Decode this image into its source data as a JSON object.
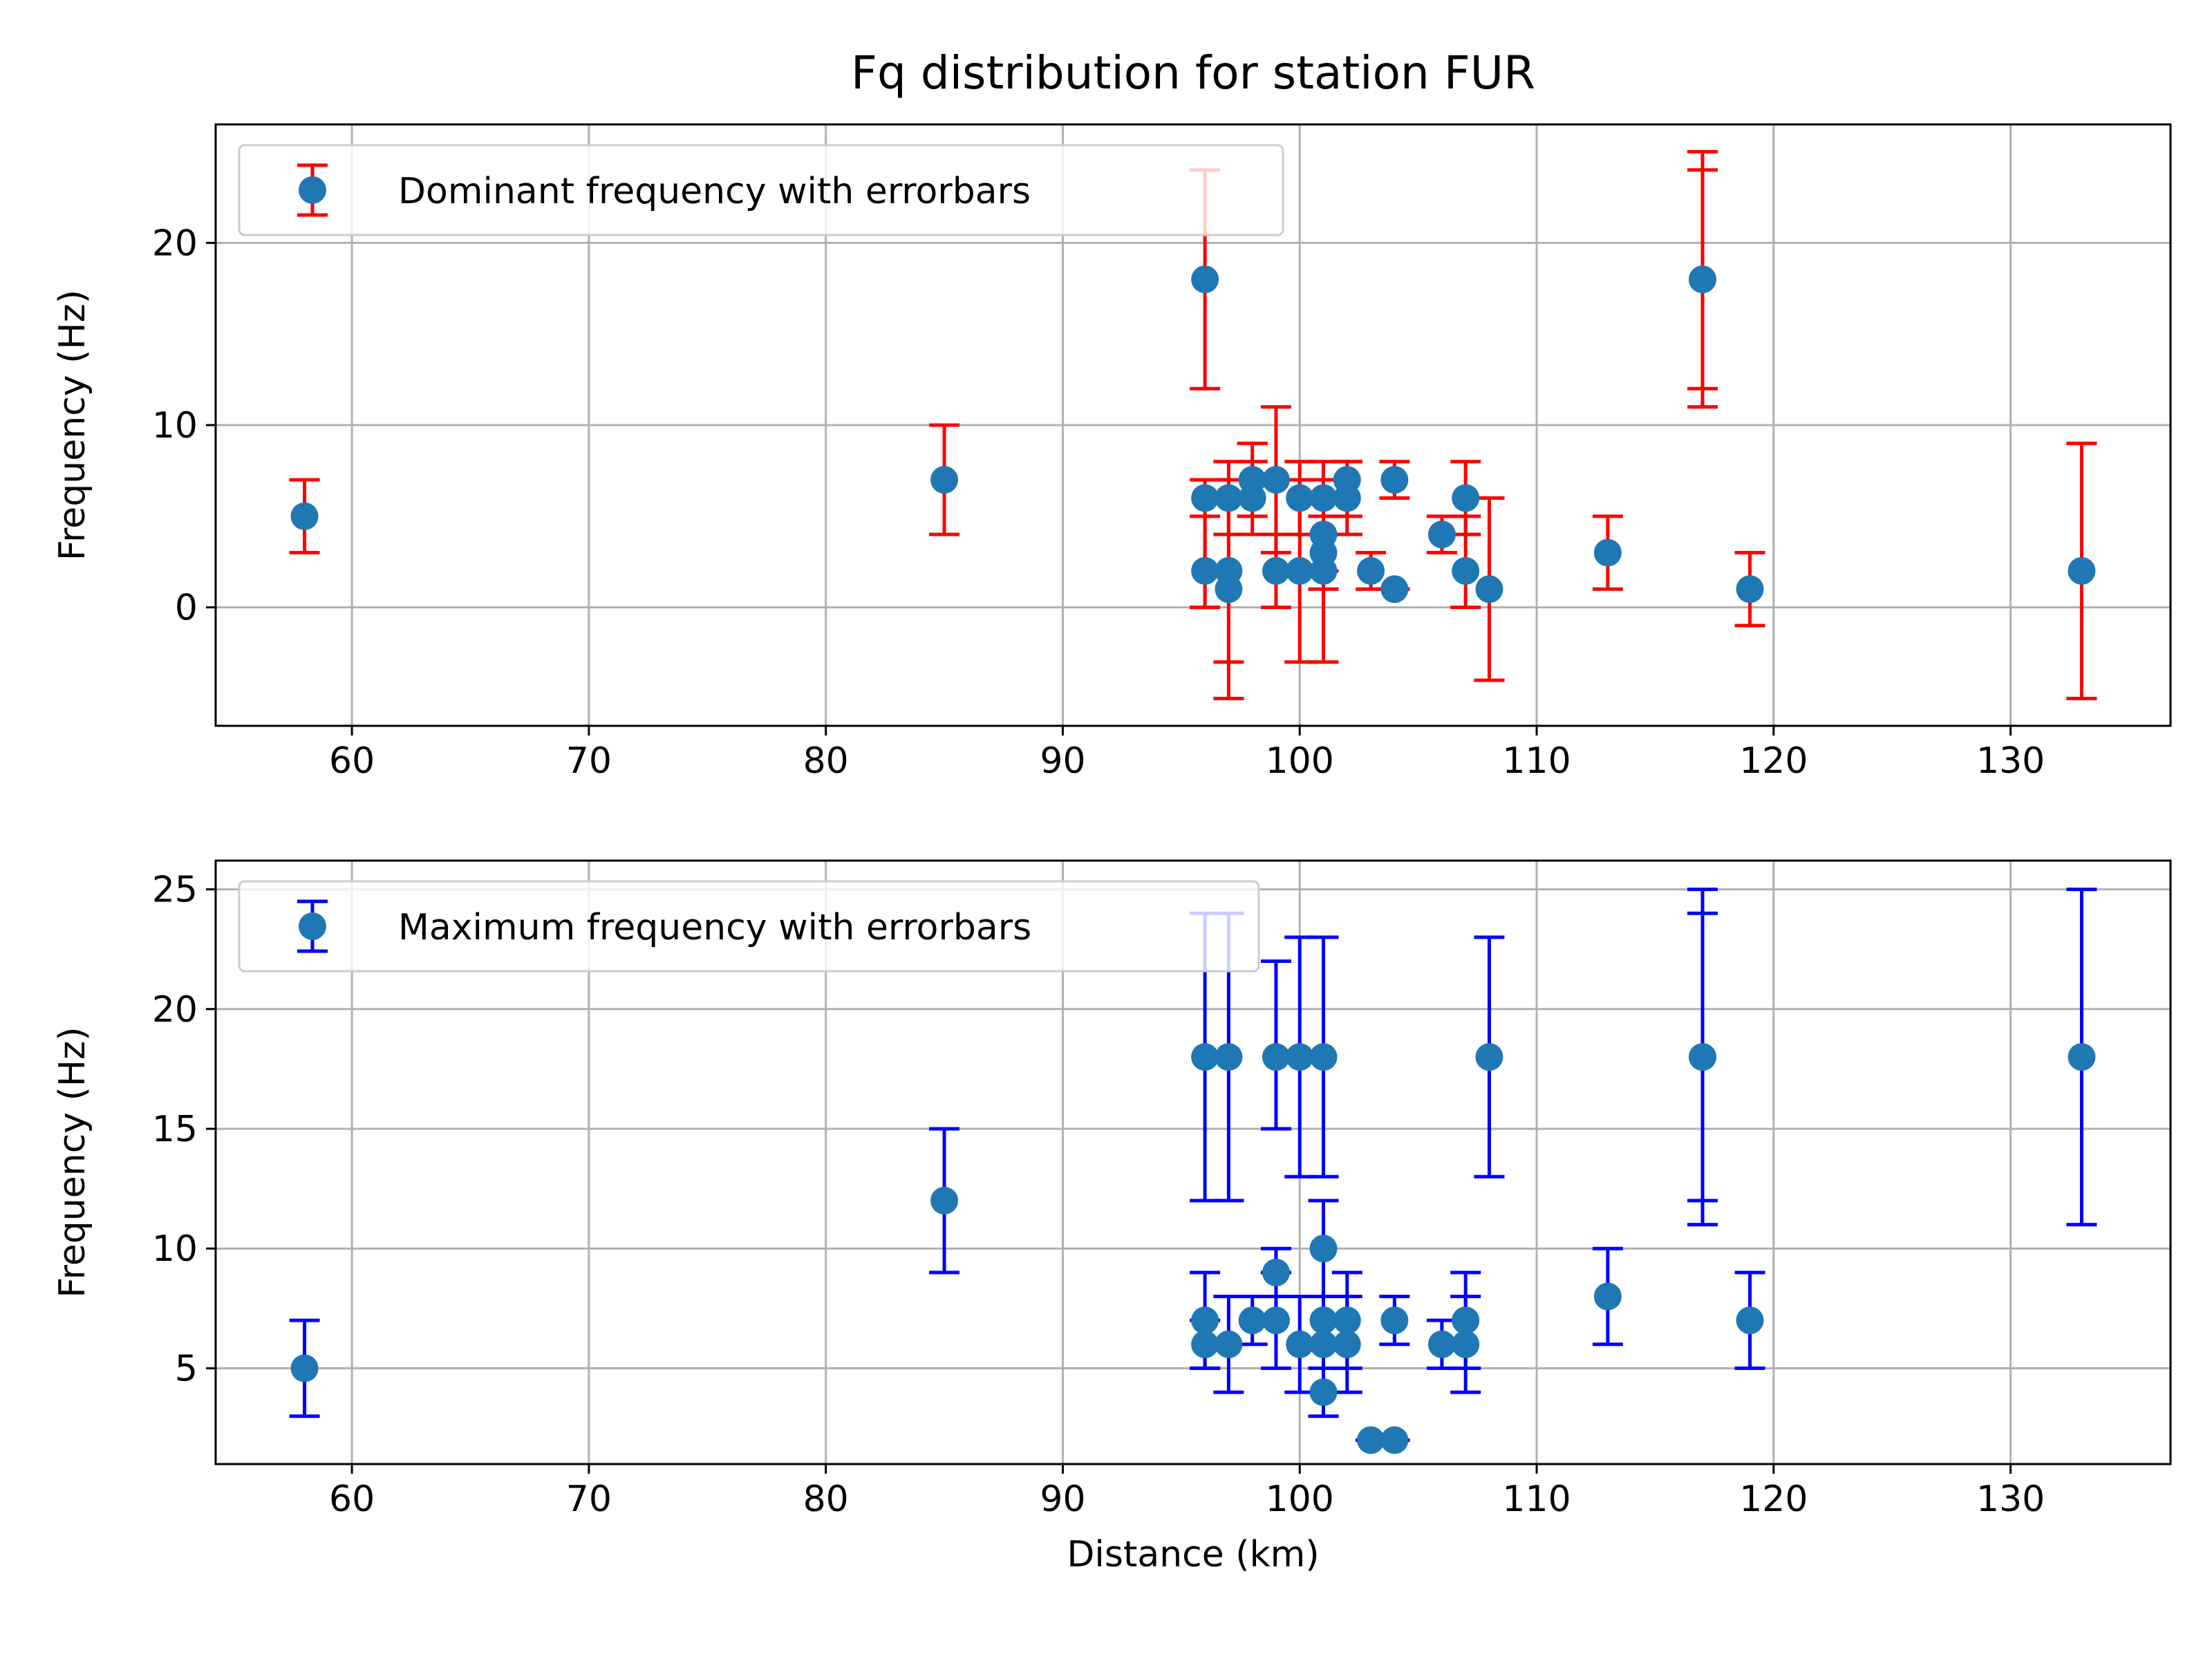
{
  "title": "Fq distribution for station FUR",
  "chart_data": [
    {
      "type": "scatter",
      "title": "Fq distribution for station FUR",
      "xlabel": "",
      "ylabel": "Frequency (Hz)",
      "xlim": [
        54.25,
        136.75
      ],
      "ylim": [
        -6.5,
        26.5
      ],
      "xticks": [
        60,
        70,
        80,
        90,
        100,
        110,
        120,
        130
      ],
      "yticks": [
        0,
        10,
        20
      ],
      "grid": true,
      "legend": {
        "position": "top-left",
        "label": "Dominant frequency with errorbars"
      },
      "colors": {
        "marker": "#1f77b4",
        "errorbar": "#ff0000"
      },
      "points": [
        {
          "x": 58,
          "y": 5,
          "ylow": 3,
          "yhigh": 7
        },
        {
          "x": 85,
          "y": 7,
          "ylow": 4,
          "yhigh": 10
        },
        {
          "x": 96,
          "y": 18,
          "ylow": 12,
          "yhigh": 24
        },
        {
          "x": 96,
          "y": 6,
          "ylow": 0,
          "yhigh": 7
        },
        {
          "x": 96,
          "y": 2,
          "ylow": 0,
          "yhigh": 5
        },
        {
          "x": 97,
          "y": 6,
          "ylow": 4,
          "yhigh": 8
        },
        {
          "x": 97,
          "y": 2,
          "ylow": -3,
          "yhigh": 7
        },
        {
          "x": 97,
          "y": 1,
          "ylow": -5,
          "yhigh": 6
        },
        {
          "x": 98,
          "y": 7,
          "ylow": 5,
          "yhigh": 9
        },
        {
          "x": 98,
          "y": 6,
          "ylow": 4,
          "yhigh": 8
        },
        {
          "x": 99,
          "y": 7,
          "ylow": 3,
          "yhigh": 11
        },
        {
          "x": 99,
          "y": 2,
          "ylow": 0,
          "yhigh": 4
        },
        {
          "x": 100,
          "y": 6,
          "ylow": 4,
          "yhigh": 8
        },
        {
          "x": 100,
          "y": 2,
          "ylow": -3,
          "yhigh": 7
        },
        {
          "x": 101,
          "y": 6,
          "ylow": 4,
          "yhigh": 8
        },
        {
          "x": 101,
          "y": 4,
          "ylow": 2,
          "yhigh": 6
        },
        {
          "x": 101,
          "y": 3,
          "ylow": 1,
          "yhigh": 5
        },
        {
          "x": 101,
          "y": 2,
          "ylow": -3,
          "yhigh": 7
        },
        {
          "x": 102,
          "y": 7,
          "ylow": 5,
          "yhigh": 8
        },
        {
          "x": 102,
          "y": 6,
          "ylow": 4,
          "yhigh": 8
        },
        {
          "x": 103,
          "y": 2,
          "ylow": 1,
          "yhigh": 3
        },
        {
          "x": 104,
          "y": 7,
          "ylow": 6,
          "yhigh": 8
        },
        {
          "x": 104,
          "y": 1,
          "ylow": 1,
          "yhigh": 1
        },
        {
          "x": 106,
          "y": 4,
          "ylow": 3,
          "yhigh": 5
        },
        {
          "x": 107,
          "y": 6,
          "ylow": 4,
          "yhigh": 8
        },
        {
          "x": 107,
          "y": 2,
          "ylow": 0,
          "yhigh": 5
        },
        {
          "x": 108,
          "y": 1,
          "ylow": -4,
          "yhigh": 6
        },
        {
          "x": 113,
          "y": 3,
          "ylow": 1,
          "yhigh": 5
        },
        {
          "x": 117,
          "y": 18,
          "ylow": 11,
          "yhigh": 25
        },
        {
          "x": 117,
          "y": 18,
          "ylow": 12,
          "yhigh": 24
        },
        {
          "x": 119,
          "y": 1,
          "ylow": -1,
          "yhigh": 3
        },
        {
          "x": 133,
          "y": 2,
          "ylow": -5,
          "yhigh": 9
        }
      ]
    },
    {
      "type": "scatter",
      "title": "",
      "xlabel": "Distance (km)",
      "ylabel": "Frequency (Hz)",
      "xlim": [
        54.25,
        136.75
      ],
      "ylim": [
        1.0,
        26.2
      ],
      "xticks": [
        60,
        70,
        80,
        90,
        100,
        110,
        120,
        130
      ],
      "yticks": [
        5,
        10,
        15,
        20,
        25
      ],
      "grid": true,
      "legend": {
        "position": "top-left",
        "label": "Maximum frequency with errorbars"
      },
      "colors": {
        "marker": "#1f77b4",
        "errorbar": "#0000ff"
      },
      "points": [
        {
          "x": 58,
          "y": 5,
          "ylow": 3,
          "yhigh": 7
        },
        {
          "x": 85,
          "y": 12,
          "ylow": 9,
          "yhigh": 15
        },
        {
          "x": 96,
          "y": 18,
          "ylow": 12,
          "yhigh": 24
        },
        {
          "x": 96,
          "y": 7,
          "ylow": 5,
          "yhigh": 9
        },
        {
          "x": 96,
          "y": 6,
          "ylow": 5,
          "yhigh": 7
        },
        {
          "x": 97,
          "y": 18,
          "ylow": 12,
          "yhigh": 24
        },
        {
          "x": 97,
          "y": 6,
          "ylow": 4,
          "yhigh": 8
        },
        {
          "x": 98,
          "y": 7,
          "ylow": 6,
          "yhigh": 8
        },
        {
          "x": 99,
          "y": 18,
          "ylow": 15,
          "yhigh": 22
        },
        {
          "x": 99,
          "y": 9,
          "ylow": 8,
          "yhigh": 10
        },
        {
          "x": 99,
          "y": 7,
          "ylow": 5,
          "yhigh": 9
        },
        {
          "x": 100,
          "y": 18,
          "ylow": 13,
          "yhigh": 23
        },
        {
          "x": 100,
          "y": 6,
          "ylow": 4,
          "yhigh": 8
        },
        {
          "x": 101,
          "y": 18,
          "ylow": 13,
          "yhigh": 23
        },
        {
          "x": 101,
          "y": 10,
          "ylow": 8,
          "yhigh": 12
        },
        {
          "x": 101,
          "y": 7,
          "ylow": 6,
          "yhigh": 8
        },
        {
          "x": 101,
          "y": 6,
          "ylow": 4,
          "yhigh": 8
        },
        {
          "x": 101,
          "y": 4,
          "ylow": 3,
          "yhigh": 5
        },
        {
          "x": 102,
          "y": 7,
          "ylow": 5,
          "yhigh": 9
        },
        {
          "x": 102,
          "y": 6,
          "ylow": 4,
          "yhigh": 8
        },
        {
          "x": 103,
          "y": 2,
          "ylow": 2,
          "yhigh": 2
        },
        {
          "x": 104,
          "y": 7,
          "ylow": 6,
          "yhigh": 8
        },
        {
          "x": 104,
          "y": 2,
          "ylow": 2,
          "yhigh": 2
        },
        {
          "x": 106,
          "y": 6,
          "ylow": 5,
          "yhigh": 7
        },
        {
          "x": 107,
          "y": 7,
          "ylow": 5,
          "yhigh": 9
        },
        {
          "x": 107,
          "y": 6,
          "ylow": 4,
          "yhigh": 8
        },
        {
          "x": 108,
          "y": 18,
          "ylow": 13,
          "yhigh": 23
        },
        {
          "x": 113,
          "y": 8,
          "ylow": 6,
          "yhigh": 10
        },
        {
          "x": 117,
          "y": 18,
          "ylow": 11,
          "yhigh": 25
        },
        {
          "x": 117,
          "y": 18,
          "ylow": 12,
          "yhigh": 24
        },
        {
          "x": 119,
          "y": 7,
          "ylow": 5,
          "yhigh": 9
        },
        {
          "x": 133,
          "y": 18,
          "ylow": 11,
          "yhigh": 25
        }
      ]
    }
  ]
}
